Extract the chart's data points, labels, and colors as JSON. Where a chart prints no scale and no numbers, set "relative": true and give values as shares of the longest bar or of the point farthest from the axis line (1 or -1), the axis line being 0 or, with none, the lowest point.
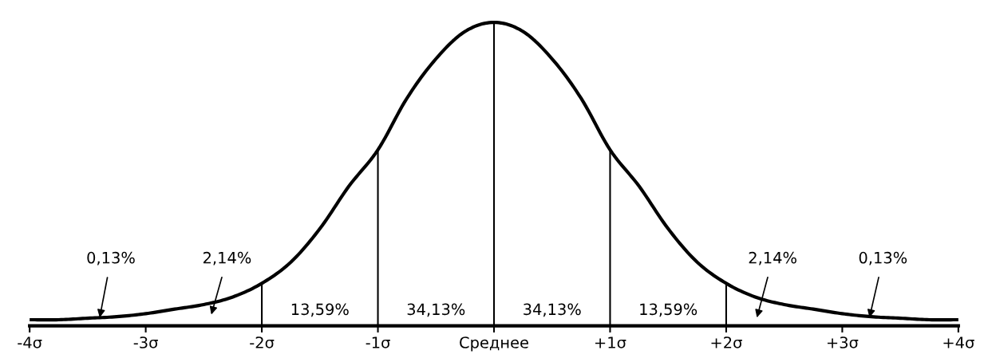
{
  "chart_data": {
    "type": "line",
    "relative": true,
    "color": "#000000",
    "x": [
      -4,
      -3.75,
      -3.5,
      -3.25,
      -3,
      -2.75,
      -2.5,
      -2.25,
      -2,
      -1.75,
      -1.5,
      -1.25,
      -1,
      -0.75,
      -0.5,
      -0.25,
      0,
      0.25,
      0.5,
      0.75,
      1,
      1.25,
      1.5,
      1.75,
      2,
      2.25,
      2.5,
      2.75,
      3,
      3.25,
      3.5,
      3.75,
      4
    ],
    "values": [
      0.02,
      0.02,
      0.025,
      0.03,
      0.04,
      0.055,
      0.07,
      0.095,
      0.14,
      0.21,
      0.32,
      0.46,
      0.58,
      0.75,
      0.88,
      0.97,
      1,
      0.97,
      0.88,
      0.75,
      0.58,
      0.46,
      0.32,
      0.21,
      0.14,
      0.095,
      0.07,
      0.055,
      0.04,
      0.03,
      0.025,
      0.02,
      0.02
    ],
    "xlim": [
      -4,
      4
    ],
    "xticks": [
      {
        "value": -4,
        "label": "-4σ"
      },
      {
        "value": -3,
        "label": "-3σ"
      },
      {
        "value": -2,
        "label": "-2σ"
      },
      {
        "value": -1,
        "label": "-1σ"
      },
      {
        "value": 0,
        "label": "Среднее"
      },
      {
        "value": 1,
        "label": "+1σ"
      },
      {
        "value": 2,
        "label": "+2σ"
      },
      {
        "value": 3,
        "label": "+3σ"
      },
      {
        "value": 4,
        "label": "+4σ"
      }
    ],
    "ref_lines": [
      {
        "axis": "x",
        "value": -2
      },
      {
        "axis": "x",
        "value": -1
      },
      {
        "axis": "x",
        "value": 0
      },
      {
        "axis": "x",
        "value": 1
      },
      {
        "axis": "x",
        "value": 2
      }
    ],
    "annotations": [
      "0,13%",
      "2,14%",
      "13,59%",
      "34,13%",
      "34,13%",
      "13,59%",
      "2,14%",
      "0,13%"
    ]
  }
}
